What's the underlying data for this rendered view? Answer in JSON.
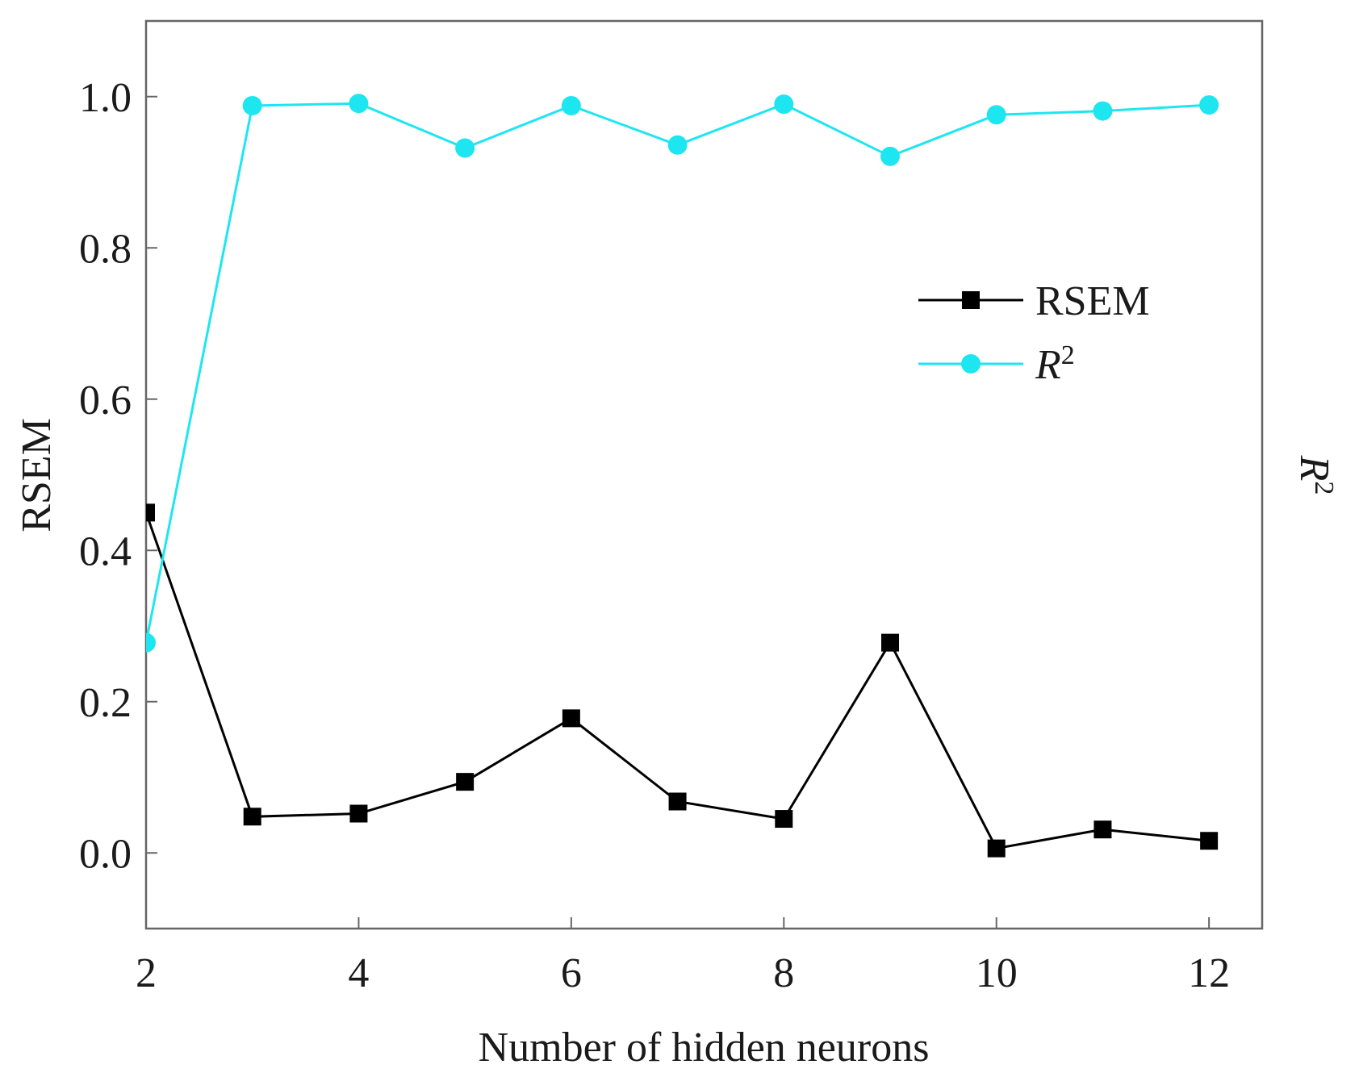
{
  "chart_data": {
    "type": "line",
    "title": "",
    "xlabel": "Number of hidden neurons",
    "ylabel": "RSEM",
    "ylabel_right_base": "R",
    "ylabel_right_sup": "2",
    "xlim": [
      2,
      12.5
    ],
    "ylim": [
      -0.1,
      1.1
    ],
    "x_ticks": [
      2,
      4,
      6,
      8,
      10,
      12
    ],
    "x_tick_labels": [
      "2",
      "4",
      "6",
      "8",
      "10",
      "12"
    ],
    "y_ticks": [
      0.0,
      0.2,
      0.4,
      0.6,
      0.8,
      1.0
    ],
    "y_tick_labels": [
      "0.0",
      "0.2",
      "0.4",
      "0.6",
      "0.8",
      "1.0"
    ],
    "grid": false,
    "legend_position": "upper-right",
    "x": [
      2,
      3,
      4,
      5,
      6,
      7,
      8,
      9,
      10,
      11,
      12
    ],
    "series": [
      {
        "name": "RSEM",
        "label_base": "RSEM",
        "label_sup": "",
        "color": "#000000",
        "marker": "square",
        "values": [
          0.45,
          0.048,
          0.052,
          0.094,
          0.178,
          0.068,
          0.045,
          0.278,
          0.006,
          0.031,
          0.016
        ]
      },
      {
        "name": "R2",
        "label_base": "R",
        "label_sup": "2",
        "color": "#1ee6f0",
        "marker": "circle",
        "values": [
          0.278,
          0.988,
          0.991,
          0.932,
          0.988,
          0.936,
          0.99,
          0.921,
          0.976,
          0.981,
          0.989
        ]
      }
    ]
  }
}
